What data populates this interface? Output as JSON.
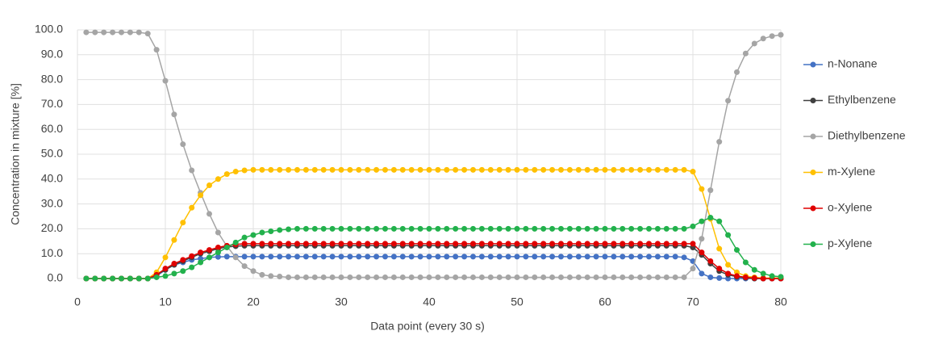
{
  "chart_data": {
    "type": "line",
    "x_label": "Data point (every 30 s)",
    "y_label": "Concentration in mixture [%]",
    "x": [
      1,
      2,
      3,
      4,
      5,
      6,
      7,
      8,
      9,
      10,
      11,
      12,
      13,
      14,
      15,
      16,
      17,
      18,
      19,
      20,
      21,
      22,
      23,
      24,
      25,
      26,
      27,
      28,
      29,
      30,
      31,
      32,
      33,
      34,
      35,
      36,
      37,
      38,
      39,
      40,
      41,
      42,
      43,
      44,
      45,
      46,
      47,
      48,
      49,
      50,
      51,
      52,
      53,
      54,
      55,
      56,
      57,
      58,
      59,
      60,
      61,
      62,
      63,
      64,
      65,
      66,
      67,
      68,
      69,
      70,
      71,
      72,
      73,
      74,
      75,
      76,
      77,
      78,
      79,
      80
    ],
    "series": [
      {
        "name": "n-Nonane",
        "color": "#4472c4",
        "values": [
          0,
          0,
          0,
          0,
          0,
          0,
          0,
          0,
          1,
          3.5,
          5.5,
          6.5,
          7.5,
          8,
          8.5,
          8.7,
          8.8,
          8.8,
          8.8,
          8.8,
          8.8,
          8.8,
          8.8,
          8.8,
          8.8,
          8.8,
          8.8,
          8.8,
          8.8,
          8.8,
          8.8,
          8.8,
          8.8,
          8.8,
          8.8,
          8.8,
          8.8,
          8.8,
          8.8,
          8.8,
          8.8,
          8.8,
          8.8,
          8.8,
          8.8,
          8.8,
          8.8,
          8.8,
          8.8,
          8.8,
          8.8,
          8.8,
          8.8,
          8.8,
          8.8,
          8.8,
          8.8,
          8.8,
          8.8,
          8.8,
          8.8,
          8.8,
          8.8,
          8.8,
          8.8,
          8.8,
          8.8,
          8.8,
          8.5,
          7,
          2,
          0.5,
          0.2,
          0,
          0,
          0,
          0,
          0,
          0,
          0
        ]
      },
      {
        "name": "Ethylbenzene",
        "color": "#404040",
        "values": [
          0,
          0,
          0,
          0,
          0,
          0,
          0,
          0,
          1.5,
          3.5,
          5.5,
          7,
          8.5,
          10,
          11,
          12,
          12.7,
          13,
          13.2,
          13.2,
          13.2,
          13.2,
          13.2,
          13.2,
          13.2,
          13.2,
          13.2,
          13.2,
          13.2,
          13.2,
          13.2,
          13.2,
          13.2,
          13.2,
          13.2,
          13.2,
          13.2,
          13.2,
          13.2,
          13.2,
          13.2,
          13.2,
          13.2,
          13.2,
          13.2,
          13.2,
          13.2,
          13.2,
          13.2,
          13.2,
          13.2,
          13.2,
          13.2,
          13.2,
          13.2,
          13.2,
          13.2,
          13.2,
          13.2,
          13.2,
          13.2,
          13.2,
          13.2,
          13.2,
          13.2,
          13.2,
          13.2,
          13.2,
          13.2,
          12.5,
          9.5,
          6,
          3,
          1.5,
          0.7,
          0.3,
          0,
          0,
          0,
          0
        ]
      },
      {
        "name": "Diethylbenzene",
        "color": "#a5a5a5",
        "values": [
          99,
          99,
          99,
          99,
          99,
          99,
          99,
          98.5,
          92,
          79.5,
          66,
          54,
          43.5,
          34.5,
          26,
          18.5,
          13,
          8.5,
          5,
          3,
          1.5,
          1,
          0.8,
          0.5,
          0.5,
          0.5,
          0.5,
          0.5,
          0.5,
          0.5,
          0.5,
          0.5,
          0.5,
          0.5,
          0.5,
          0.5,
          0.5,
          0.5,
          0.5,
          0.5,
          0.5,
          0.5,
          0.5,
          0.5,
          0.5,
          0.5,
          0.5,
          0.5,
          0.5,
          0.5,
          0.5,
          0.5,
          0.5,
          0.5,
          0.5,
          0.5,
          0.5,
          0.5,
          0.5,
          0.5,
          0.5,
          0.5,
          0.5,
          0.5,
          0.5,
          0.5,
          0.5,
          0.5,
          0.5,
          4,
          16,
          35.5,
          55,
          71.5,
          83,
          90.5,
          94.5,
          96.5,
          97.5,
          98
        ]
      },
      {
        "name": "m-Xylene",
        "color": "#ffc000",
        "values": [
          0,
          0,
          0,
          0,
          0,
          0,
          0,
          0,
          2.5,
          8.5,
          15.5,
          22.5,
          28.5,
          33.5,
          37.5,
          40,
          42,
          43,
          43.5,
          43.7,
          43.7,
          43.7,
          43.7,
          43.7,
          43.7,
          43.7,
          43.7,
          43.7,
          43.7,
          43.7,
          43.7,
          43.7,
          43.7,
          43.7,
          43.7,
          43.7,
          43.7,
          43.7,
          43.7,
          43.7,
          43.7,
          43.7,
          43.7,
          43.7,
          43.7,
          43.7,
          43.7,
          43.7,
          43.7,
          43.7,
          43.7,
          43.7,
          43.7,
          43.7,
          43.7,
          43.7,
          43.7,
          43.7,
          43.7,
          43.7,
          43.7,
          43.7,
          43.7,
          43.7,
          43.7,
          43.7,
          43.7,
          43.7,
          43.7,
          43,
          36,
          24,
          12,
          5.5,
          2.5,
          1,
          0.5,
          0.2,
          0.2,
          0.2
        ]
      },
      {
        "name": "o-Xylene",
        "color": "#e00000",
        "values": [
          0,
          0,
          0,
          0,
          0,
          0,
          0,
          0,
          1.5,
          4,
          6,
          7.5,
          9,
          10.5,
          11.5,
          12.5,
          13.2,
          13.7,
          14,
          14,
          14,
          14,
          14,
          14,
          14,
          14,
          14,
          14,
          14,
          14,
          14,
          14,
          14,
          14,
          14,
          14,
          14,
          14,
          14,
          14,
          14,
          14,
          14,
          14,
          14,
          14,
          14,
          14,
          14,
          14,
          14,
          14,
          14,
          14,
          14,
          14,
          14,
          14,
          14,
          14,
          14,
          14,
          14,
          14,
          14,
          14,
          14,
          14,
          14,
          14,
          10.5,
          7,
          4,
          2,
          1,
          0.5,
          0.2,
          0,
          0,
          0
        ]
      },
      {
        "name": "p-Xylene",
        "color": "#22b14c",
        "values": [
          0,
          0,
          0,
          0,
          0,
          0,
          0,
          0,
          0.5,
          1,
          2,
          3,
          4.5,
          6.5,
          8.5,
          10.5,
          12.5,
          14.5,
          16.5,
          17.5,
          18.5,
          19,
          19.5,
          19.8,
          20,
          20,
          20,
          20,
          20,
          20,
          20,
          20,
          20,
          20,
          20,
          20,
          20,
          20,
          20,
          20,
          20,
          20,
          20,
          20,
          20,
          20,
          20,
          20,
          20,
          20,
          20,
          20,
          20,
          20,
          20,
          20,
          20,
          20,
          20,
          20,
          20,
          20,
          20,
          20,
          20,
          20,
          20,
          20,
          20,
          21,
          23,
          24.5,
          23,
          17.5,
          11.5,
          6.5,
          3.5,
          2,
          1,
          0.7
        ]
      }
    ],
    "xlim": [
      0,
      80
    ],
    "xticks": [
      0,
      10,
      20,
      30,
      40,
      50,
      60,
      70,
      80
    ],
    "ylim": [
      0,
      100
    ],
    "yticks": [
      {
        "value": 0,
        "label": "0.0"
      },
      {
        "value": 10,
        "label": "10.0"
      },
      {
        "value": 20,
        "label": "20.0"
      },
      {
        "value": 30,
        "label": "30.0"
      },
      {
        "value": 40,
        "label": "40.0"
      },
      {
        "value": 50,
        "label": "50.0"
      },
      {
        "value": 60,
        "label": "60.0"
      },
      {
        "value": 70,
        "label": "70.0"
      },
      {
        "value": 80,
        "label": "80.0"
      },
      {
        "value": 90,
        "label": "90.0"
      },
      {
        "value": 100,
        "label": "100.0"
      }
    ],
    "grid": true,
    "legend": "right"
  }
}
